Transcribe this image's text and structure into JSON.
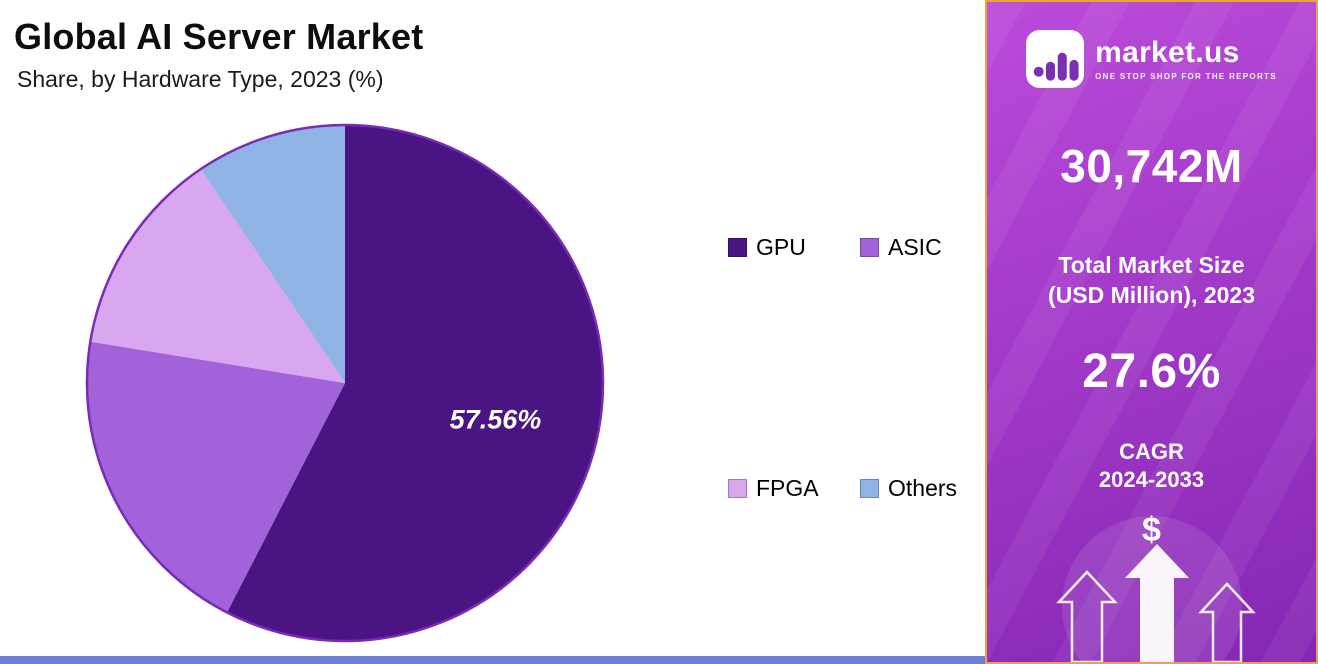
{
  "header": {
    "title": "Global AI Server Market",
    "subtitle": "Share, by Hardware Type, 2023 (%)"
  },
  "chart_data": {
    "type": "pie",
    "title": "Global AI Server Market Share, by Hardware Type, 2023 (%)",
    "units": "%",
    "start_angle_deg": 0,
    "direction": "clockwise",
    "slices": [
      {
        "label": "GPU",
        "value": 57.56,
        "color": "#4a1482",
        "data_label": "57.56%"
      },
      {
        "label": "ASIC",
        "value": 20.0,
        "color": "#a262d9",
        "data_label": ""
      },
      {
        "label": "FPGA",
        "value": 13.0,
        "color": "#d9a6f0",
        "data_label": ""
      },
      {
        "label": "Others",
        "value": 9.44,
        "color": "#90b3e6",
        "data_label": ""
      }
    ],
    "legend_position": "right",
    "outline_color": "#7a2ab8"
  },
  "sidebar": {
    "logo": {
      "brand": "market.us",
      "tagline": "ONE STOP SHOP FOR THE REPORTS"
    },
    "market_size": {
      "value": "30,742M",
      "label_line1": "Total Market Size",
      "label_line2": "(USD Million), 2023"
    },
    "cagr": {
      "value": "27.6%",
      "label_line1": "CAGR",
      "label_line2": "2024-2033"
    },
    "dollar_symbol": "$"
  },
  "colors": {
    "sidebar_gradient_start": "#bb4ada",
    "sidebar_gradient_end": "#8526b4",
    "sidebar_border": "#f0a23a",
    "bottom_strip": "#6f7ed8",
    "logo_glyph": "#7b2fb3"
  }
}
